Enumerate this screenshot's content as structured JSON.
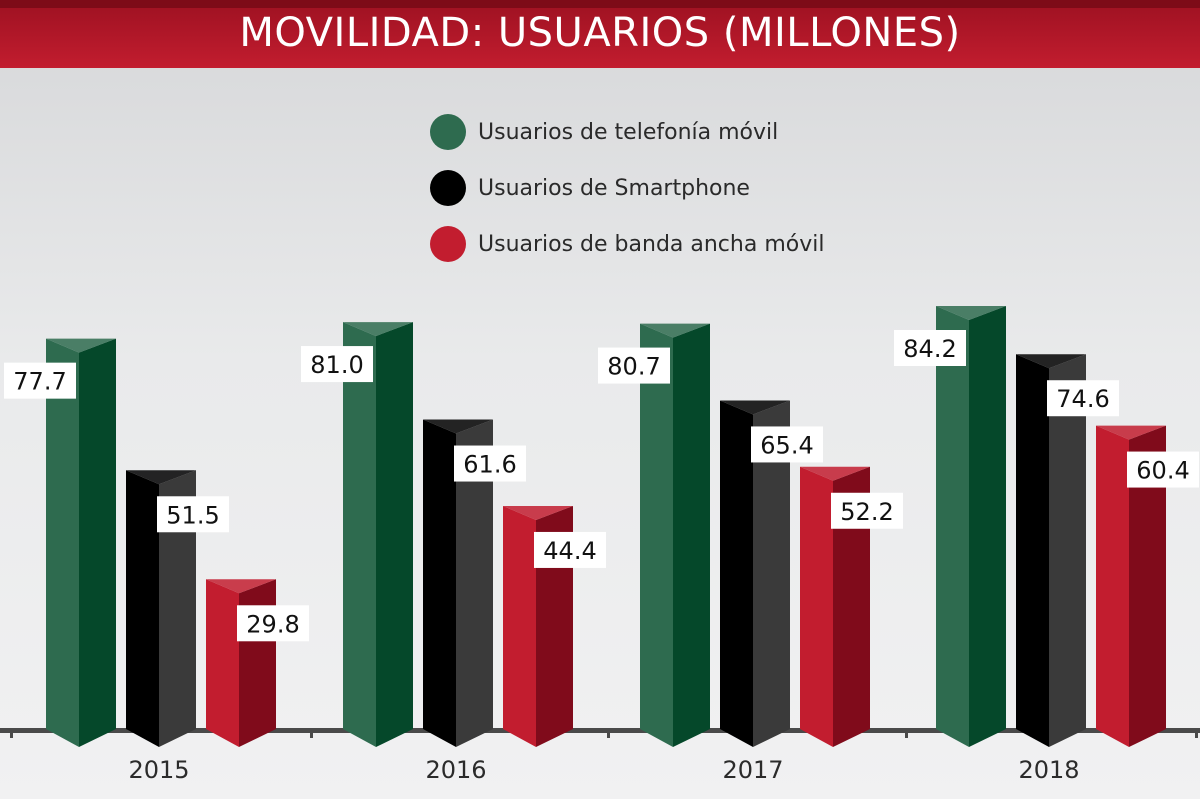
{
  "title": "MOVILIDAD: USUARIOS (MILLONES)",
  "colors": {
    "title_band": "#c21d2f",
    "background": "#e6e7e8"
  },
  "legend": [
    {
      "label": "Usuarios de telefonía móvil",
      "color": "#2e6b4f"
    },
    {
      "label": "Usuarios de Smartphone",
      "color": "#000000"
    },
    {
      "label": "Usuarios de banda ancha móvil",
      "color": "#c21d2f"
    }
  ],
  "chart_data": {
    "type": "bar",
    "title": "MOVILIDAD: USUARIOS (MILLONES)",
    "categories": [
      "2015",
      "2016",
      "2017",
      "2018"
    ],
    "series": [
      {
        "name": "Usuarios de telefonía móvil",
        "values": [
          77.7,
          81.0,
          80.7,
          84.2
        ],
        "labels": [
          "77.7",
          "81.0",
          "80.7",
          "84.2"
        ],
        "front_color": "#2e6b4f",
        "side_color": "#05482a"
      },
      {
        "name": "Usuarios de Smartphone",
        "values": [
          51.5,
          61.6,
          65.4,
          74.6
        ],
        "labels": [
          "51.5",
          "61.6",
          "65.4",
          "74.6"
        ],
        "front_color": "#000000",
        "side_color": "#3a3a3a"
      },
      {
        "name": "Usuarios de banda ancha móvil",
        "values": [
          29.8,
          44.4,
          52.2,
          60.4
        ],
        "labels": [
          "29.8",
          "44.4",
          "52.2",
          "60.4"
        ],
        "front_color": "#c21d2f",
        "side_color": "#800b1b"
      }
    ],
    "xlabel": "",
    "ylabel": "",
    "ylim": [
      0,
      88
    ],
    "grid": false,
    "legend_position": "top-center",
    "style": "3d-columns"
  }
}
